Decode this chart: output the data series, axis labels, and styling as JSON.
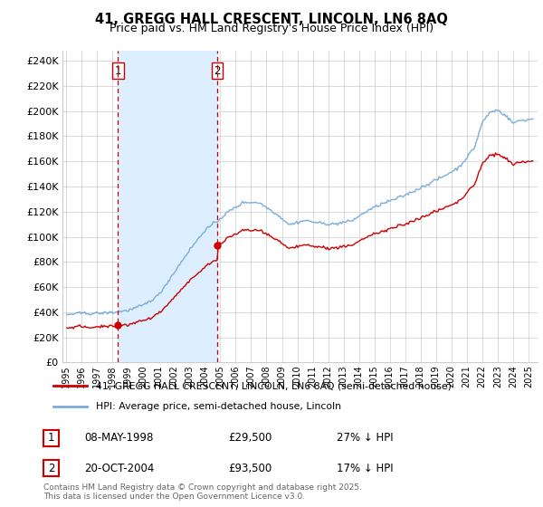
{
  "title": "41, GREGG HALL CRESCENT, LINCOLN, LN6 8AQ",
  "subtitle": "Price paid vs. HM Land Registry's House Price Index (HPI)",
  "legend_line1": "41, GREGG HALL CRESCENT, LINCOLN, LN6 8AQ (semi-detached house)",
  "legend_line2": "HPI: Average price, semi-detached house, Lincoln",
  "purchase1_date": "08-MAY-1998",
  "purchase1_price": 29500,
  "purchase2_date": "20-OCT-2004",
  "purchase2_price": 93500,
  "purchase1_hpi": "27% ↓ HPI",
  "purchase2_hpi": "17% ↓ HPI",
  "footer": "Contains HM Land Registry data © Crown copyright and database right 2025.\nThis data is licensed under the Open Government Licence v3.0.",
  "line_color_red": "#cc0000",
  "line_color_blue": "#7aaddb",
  "shade_color": "#ddeeff",
  "marker_color": "#cc0000",
  "vline_color": "#cc0000",
  "grid_color": "#cccccc",
  "background_color": "#ffffff",
  "ylim": [
    0,
    248000
  ],
  "yticks": [
    0,
    20000,
    40000,
    60000,
    80000,
    100000,
    120000,
    140000,
    160000,
    180000,
    200000,
    220000,
    240000
  ],
  "xlim_left": 1994.75,
  "xlim_right": 2025.6
}
